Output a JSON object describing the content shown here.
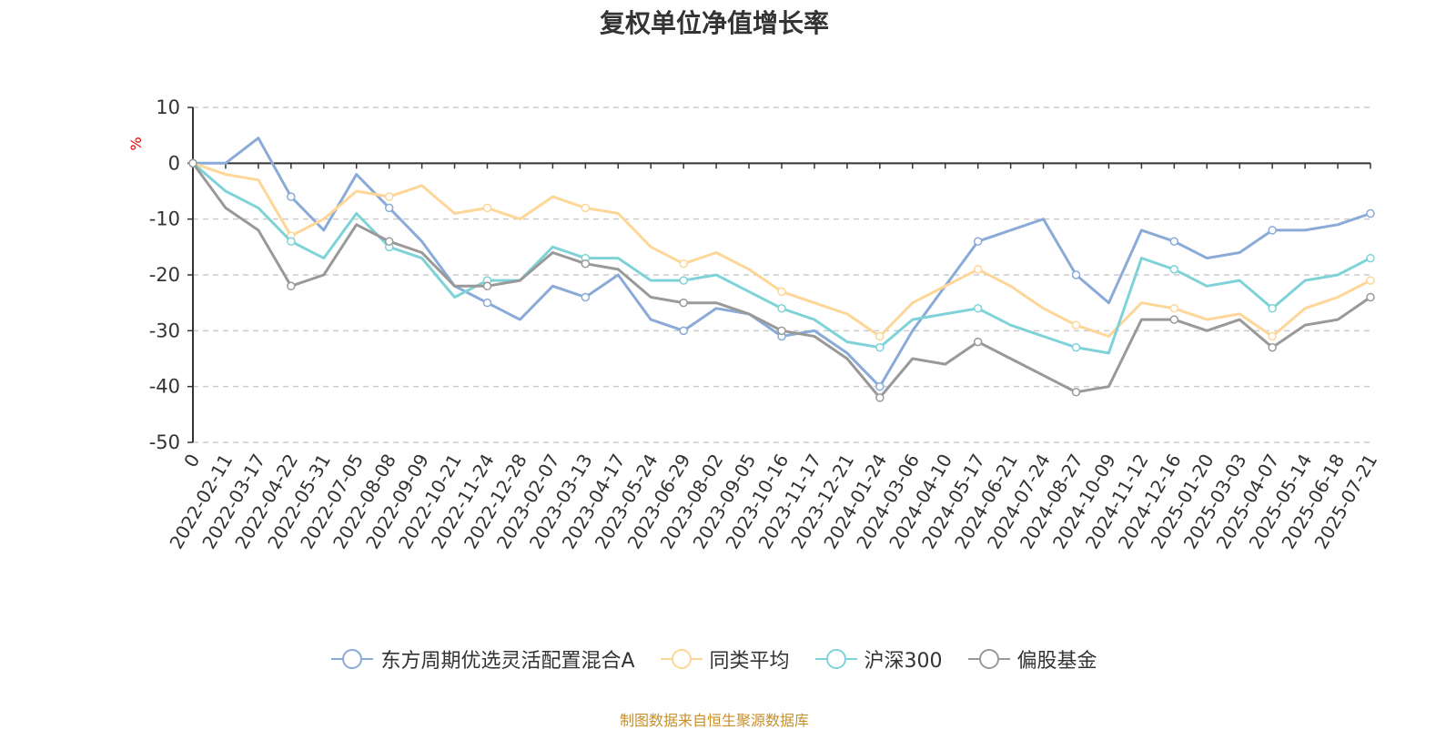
{
  "title": "复权单位净值增长率",
  "source_note": "制图数据来自恒生聚源数据库",
  "colors": {
    "fund": "#8aaad8",
    "peer": "#fdd698",
    "hs300": "#7fd3d8",
    "equity": "#999999",
    "axis_unit": "#dd0000"
  },
  "chart_data": {
    "type": "line",
    "title": "复权单位净值增长率",
    "ylabel": "%",
    "ylim": [
      -50,
      10
    ],
    "yticks": [
      10,
      0,
      -10,
      -20,
      -30,
      -40,
      -50
    ],
    "x_labels": [
      "0",
      "2022-02-11",
      "2022-03-17",
      "2022-04-22",
      "2022-05-31",
      "2022-07-05",
      "2022-08-08",
      "2022-09-09",
      "2022-10-21",
      "2022-11-24",
      "2022-12-28",
      "2023-02-07",
      "2023-03-13",
      "2023-04-17",
      "2023-05-24",
      "2023-06-29",
      "2023-08-02",
      "2023-09-05",
      "2023-10-16",
      "2023-11-17",
      "2023-12-21",
      "2024-01-24",
      "2024-03-06",
      "2024-04-10",
      "2024-05-17",
      "2024-06-21",
      "2024-07-24",
      "2024-08-27",
      "2024-10-09",
      "2024-11-12",
      "2024-12-16",
      "2025-01-20",
      "2025-03-03",
      "2025-04-07",
      "2025-05-14",
      "2025-06-18",
      "2025-07-21"
    ],
    "grid": true,
    "legend_position": "bottom",
    "series": [
      {
        "name": "东方周期优选灵活配置混合A",
        "color_key": "fund",
        "values": [
          0,
          0,
          4.5,
          -6,
          -12,
          -2,
          -8,
          -14,
          -22,
          -25,
          -28,
          -22,
          -24,
          -20,
          -28,
          -30,
          -26,
          -27,
          -31,
          -30,
          -34,
          -40,
          -30,
          -22,
          -14,
          -12,
          -10,
          -20,
          -25,
          -12,
          -14,
          -17,
          -16,
          -12,
          -12,
          -11,
          -9
        ]
      },
      {
        "name": "同类平均",
        "color_key": "peer",
        "values": [
          0,
          -2,
          -3,
          -13,
          -10,
          -5,
          -6,
          -4,
          -9,
          -8,
          -10,
          -6,
          -8,
          -9,
          -15,
          -18,
          -16,
          -19,
          -23,
          -25,
          -27,
          -31,
          -25,
          -22,
          -19,
          -22,
          -26,
          -29,
          -31,
          -25,
          -26,
          -28,
          -27,
          -31,
          -26,
          -24,
          -21
        ]
      },
      {
        "name": "沪深300",
        "color_key": "hs300",
        "values": [
          0,
          -5,
          -8,
          -14,
          -17,
          -9,
          -15,
          -17,
          -24,
          -21,
          -21,
          -15,
          -17,
          -17,
          -21,
          -21,
          -20,
          -23,
          -26,
          -28,
          -32,
          -33,
          -28,
          -27,
          -26,
          -29,
          -31,
          -33,
          -34,
          -17,
          -19,
          -22,
          -21,
          -26,
          -21,
          -20,
          -17
        ]
      },
      {
        "name": "偏股基金",
        "color_key": "equity",
        "values": [
          0,
          -8,
          -12,
          -22,
          -20,
          -11,
          -14,
          -16,
          -22,
          -22,
          -21,
          -16,
          -18,
          -19,
          -24,
          -25,
          -25,
          -27,
          -30,
          -31,
          -35,
          -42,
          -35,
          -36,
          -32,
          -35,
          -38,
          -41,
          -40,
          -28,
          -28,
          -30,
          -28,
          -33,
          -29,
          -28,
          -24
        ]
      }
    ]
  }
}
